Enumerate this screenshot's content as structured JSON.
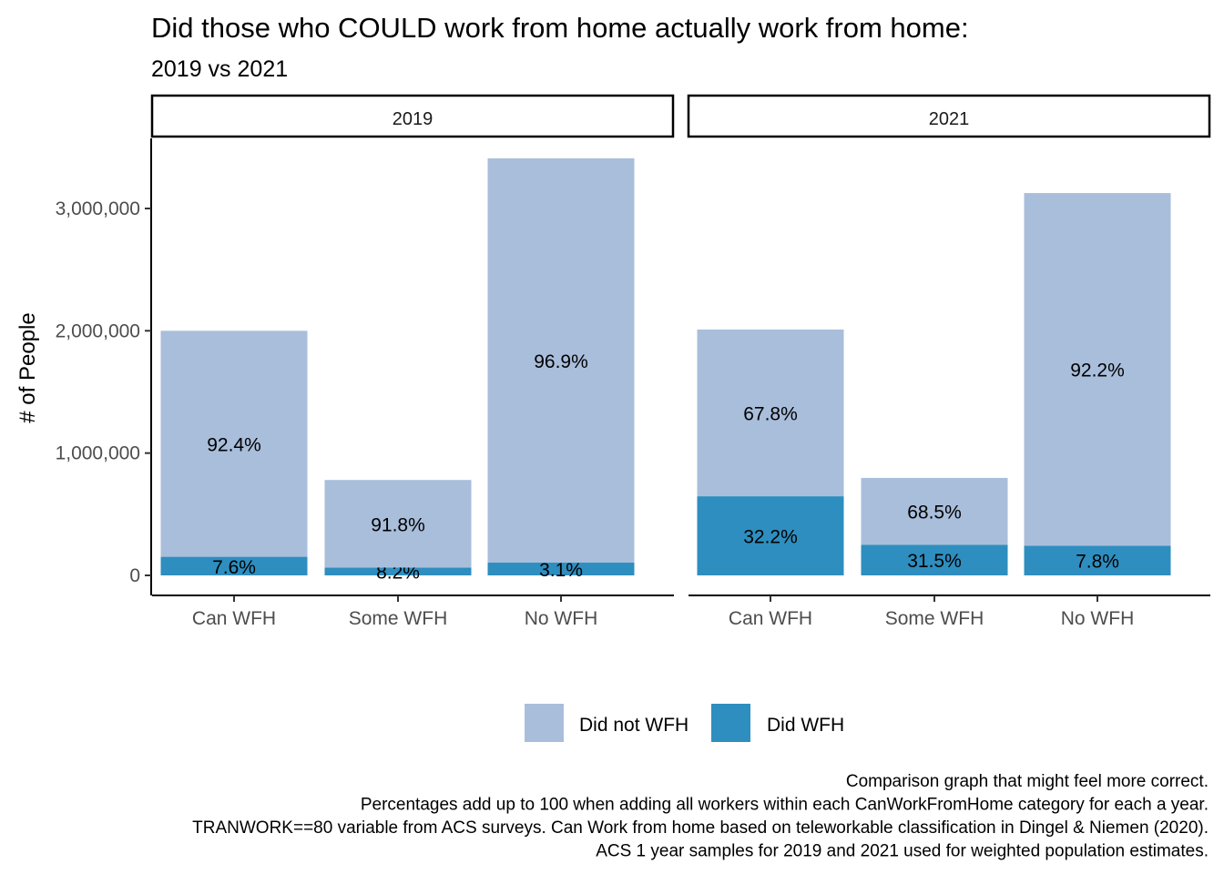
{
  "chart_data": {
    "type": "bar",
    "stacked": true,
    "title": "Did those who COULD work from home actually work from home:",
    "subtitle": "2019 vs 2021",
    "ylabel": "# of People",
    "xlabel": "",
    "ylim": [
      0,
      3550000
    ],
    "y_ticks": [
      0,
      1000000,
      2000000,
      3000000
    ],
    "y_tick_labels": [
      "0",
      "1,000,000",
      "2,000,000",
      "3,000,000"
    ],
    "categories": [
      "Can WFH",
      "Some WFH",
      "No WFH"
    ],
    "legend": {
      "position": "bottom",
      "entries": [
        {
          "name": "Did not WFH",
          "color": "#a9bedb"
        },
        {
          "name": "Did WFH",
          "color": "#2e8ebf"
        }
      ]
    },
    "panels": [
      {
        "label": "2019",
        "series": [
          {
            "name": "Did WFH",
            "values": [
              152000,
              64000,
              106000
            ],
            "labels": [
              "7.6%",
              "8.2%",
              "3.1%"
            ]
          },
          {
            "name": "Did not WFH",
            "values": [
              1848000,
              716000,
              3304000
            ],
            "labels": [
              "92.4%",
              "91.8%",
              "96.9%"
            ]
          }
        ]
      },
      {
        "label": "2021",
        "series": [
          {
            "name": "Did WFH",
            "values": [
              647000,
              251000,
              243000
            ],
            "labels": [
              "32.2%",
              "31.5%",
              "7.8%"
            ]
          },
          {
            "name": "Did not WFH",
            "values": [
              1363000,
              546000,
              2883000
            ],
            "labels": [
              "67.8%",
              "68.5%",
              "92.2%"
            ]
          }
        ]
      }
    ],
    "caption": [
      "Comparison graph that might feel more correct.",
      "Percentages add up to 100 when adding all workers within each CanWorkFromHome category for each a year.",
      "TRANWORK==80 variable from ACS surveys. Can Work from home based on teleworkable classification in Dingel & Niemen (2020).",
      "ACS 1 year samples for 2019 and 2021 used for weighted population estimates."
    ]
  }
}
